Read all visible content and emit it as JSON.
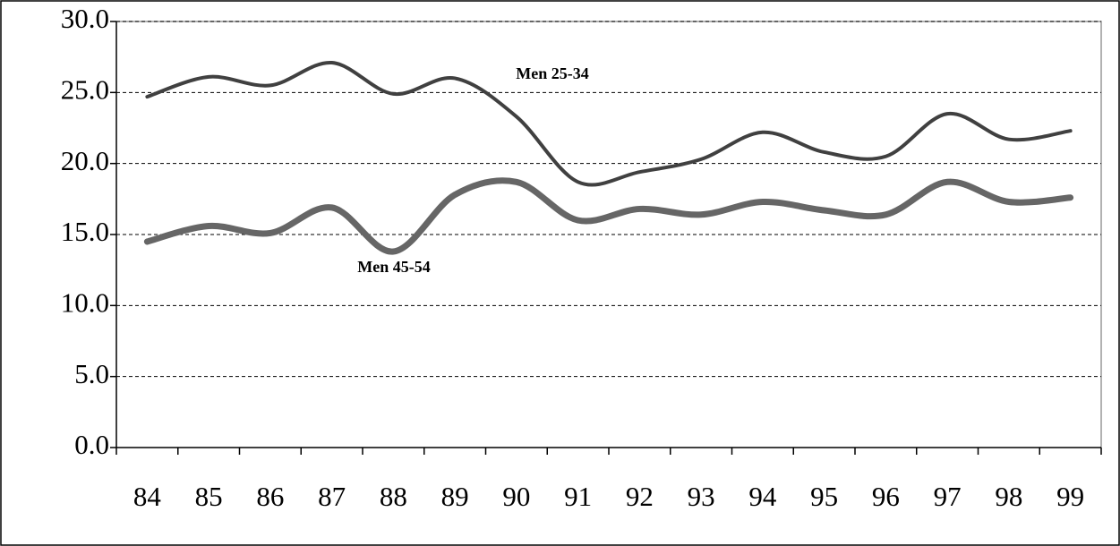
{
  "chart_data": {
    "type": "line",
    "categories": [
      "84",
      "85",
      "86",
      "87",
      "88",
      "89",
      "90",
      "91",
      "92",
      "93",
      "94",
      "95",
      "96",
      "97",
      "98",
      "99"
    ],
    "series": [
      {
        "name": "Men 25-34",
        "color": "#404040",
        "values": [
          24.7,
          26.1,
          25.5,
          27.1,
          24.9,
          26.0,
          23.3,
          18.7,
          19.4,
          20.3,
          22.2,
          20.8,
          20.5,
          23.5,
          21.7,
          22.3
        ]
      },
      {
        "name": "Men 45-54",
        "color": "#666666",
        "values": [
          14.5,
          15.6,
          15.1,
          16.9,
          13.8,
          17.8,
          18.7,
          16.0,
          16.8,
          16.4,
          17.3,
          16.7,
          16.4,
          18.7,
          17.3,
          17.6
        ]
      }
    ],
    "ylim": [
      0,
      30
    ],
    "yticks": [
      {
        "value": 0,
        "label": "0.0"
      },
      {
        "value": 5,
        "label": "5.0"
      },
      {
        "value": 10,
        "label": "10.0"
      },
      {
        "value": 15,
        "label": "15.0"
      },
      {
        "value": 20,
        "label": "20.0"
      },
      {
        "value": 25,
        "label": "25.0"
      },
      {
        "value": 30,
        "label": "30.0"
      }
    ],
    "grid": true
  }
}
